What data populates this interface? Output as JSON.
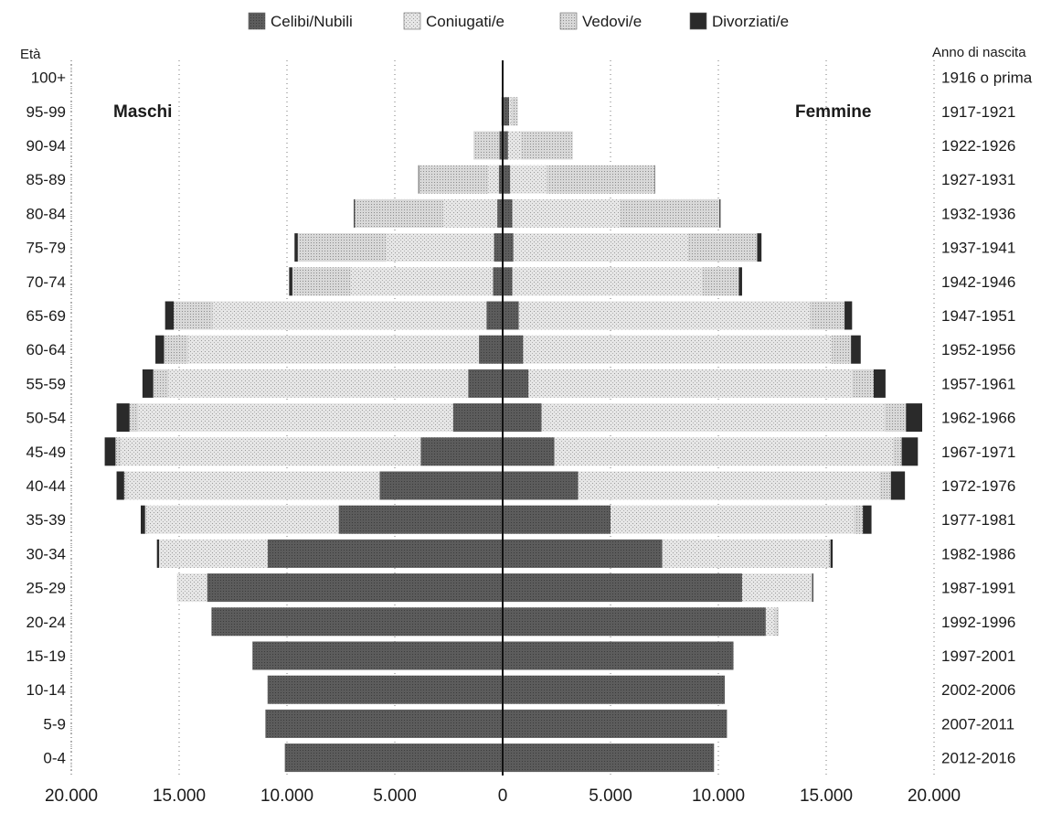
{
  "chart_data": {
    "type": "bar",
    "subtype": "population-pyramid-stacked",
    "legend": {
      "placement": "top-center",
      "items": [
        {
          "key": "single",
          "label": "Celibi/Nubili",
          "color": "#5a5a5a"
        },
        {
          "key": "married",
          "label": "Coniugati/e",
          "color": "#e3e3e3"
        },
        {
          "key": "widowed",
          "label": "Vedovi/e",
          "color": "#d0d0d0"
        },
        {
          "key": "divorced",
          "label": "Divorziati/e",
          "color": "#2f2f2f"
        }
      ]
    },
    "y_left_title": "Età",
    "y_right_title": "Anno di nascita",
    "left_panel_label": "Maschi",
    "right_panel_label": "Femmine",
    "x_ticks": [
      {
        "value": -20000,
        "label": "20.000"
      },
      {
        "value": -15000,
        "label": "15.000"
      },
      {
        "value": -10000,
        "label": "10.000"
      },
      {
        "value": -5000,
        "label": "5.000"
      },
      {
        "value": 0,
        "label": "0"
      },
      {
        "value": 5000,
        "label": "5.000"
      },
      {
        "value": 10000,
        "label": "10.000"
      },
      {
        "value": 15000,
        "label": "15.000"
      },
      {
        "value": 20000,
        "label": "20.000"
      }
    ],
    "xlim": [
      -20000,
      20000
    ],
    "grid": "vertical-dotted",
    "age_groups": [
      "100+",
      "95-99",
      "90-94",
      "85-89",
      "80-84",
      "75-79",
      "70-74",
      "65-69",
      "60-64",
      "55-59",
      "50-54",
      "45-49",
      "40-44",
      "35-39",
      "30-34",
      "25-29",
      "20-24",
      "15-19",
      "10-14",
      "5-9",
      "0-4"
    ],
    "birth_years": [
      "1916 o prima",
      "1917-1921",
      "1922-1926",
      "1927-1931",
      "1932-1936",
      "1937-1941",
      "1942-1946",
      "1947-1951",
      "1952-1956",
      "1957-1961",
      "1962-1966",
      "1967-1971",
      "1972-1976",
      "1977-1981",
      "1982-1986",
      "1987-1991",
      "1992-1996",
      "1997-2001",
      "2002-2006",
      "2007-2011",
      "2012-2016"
    ],
    "males": {
      "single": [
        0,
        20,
        150,
        180,
        250,
        400,
        450,
        750,
        1100,
        1600,
        2300,
        3800,
        5700,
        7600,
        10900,
        13700,
        13500,
        11600,
        10900,
        11000,
        10100
      ],
      "married": [
        0,
        0,
        0,
        500,
        2500,
        5000,
        6600,
        12700,
        13500,
        13900,
        14600,
        13900,
        11700,
        8900,
        5000,
        1400,
        0,
        0,
        0,
        0,
        0
      ],
      "widowed": [
        0,
        60,
        1200,
        3200,
        4100,
        4100,
        2700,
        1800,
        1100,
        700,
        400,
        250,
        150,
        80,
        30,
        0,
        0,
        0,
        0,
        0,
        0
      ],
      "divorced": [
        0,
        0,
        0,
        30,
        50,
        150,
        150,
        400,
        400,
        500,
        600,
        500,
        350,
        200,
        100,
        0,
        0,
        0,
        0,
        0,
        0
      ]
    },
    "females": {
      "single": [
        0,
        300,
        250,
        350,
        450,
        500,
        450,
        750,
        950,
        1200,
        1800,
        2400,
        3500,
        5000,
        7400,
        11100,
        12200,
        10700,
        10300,
        10400,
        9800
      ],
      "married": [
        0,
        100,
        600,
        1700,
        5000,
        8100,
        8800,
        13500,
        14300,
        15000,
        15900,
        15700,
        14000,
        11300,
        7700,
        3200,
        400,
        0,
        0,
        0,
        0
      ],
      "widowed": [
        0,
        300,
        2400,
        5000,
        4600,
        3200,
        1700,
        1600,
        900,
        1000,
        1000,
        400,
        500,
        400,
        100,
        50,
        200,
        0,
        0,
        0,
        0
      ],
      "divorced": [
        0,
        0,
        0,
        20,
        50,
        200,
        150,
        350,
        450,
        550,
        750,
        750,
        650,
        400,
        100,
        50,
        0,
        0,
        0,
        0,
        0
      ]
    }
  }
}
